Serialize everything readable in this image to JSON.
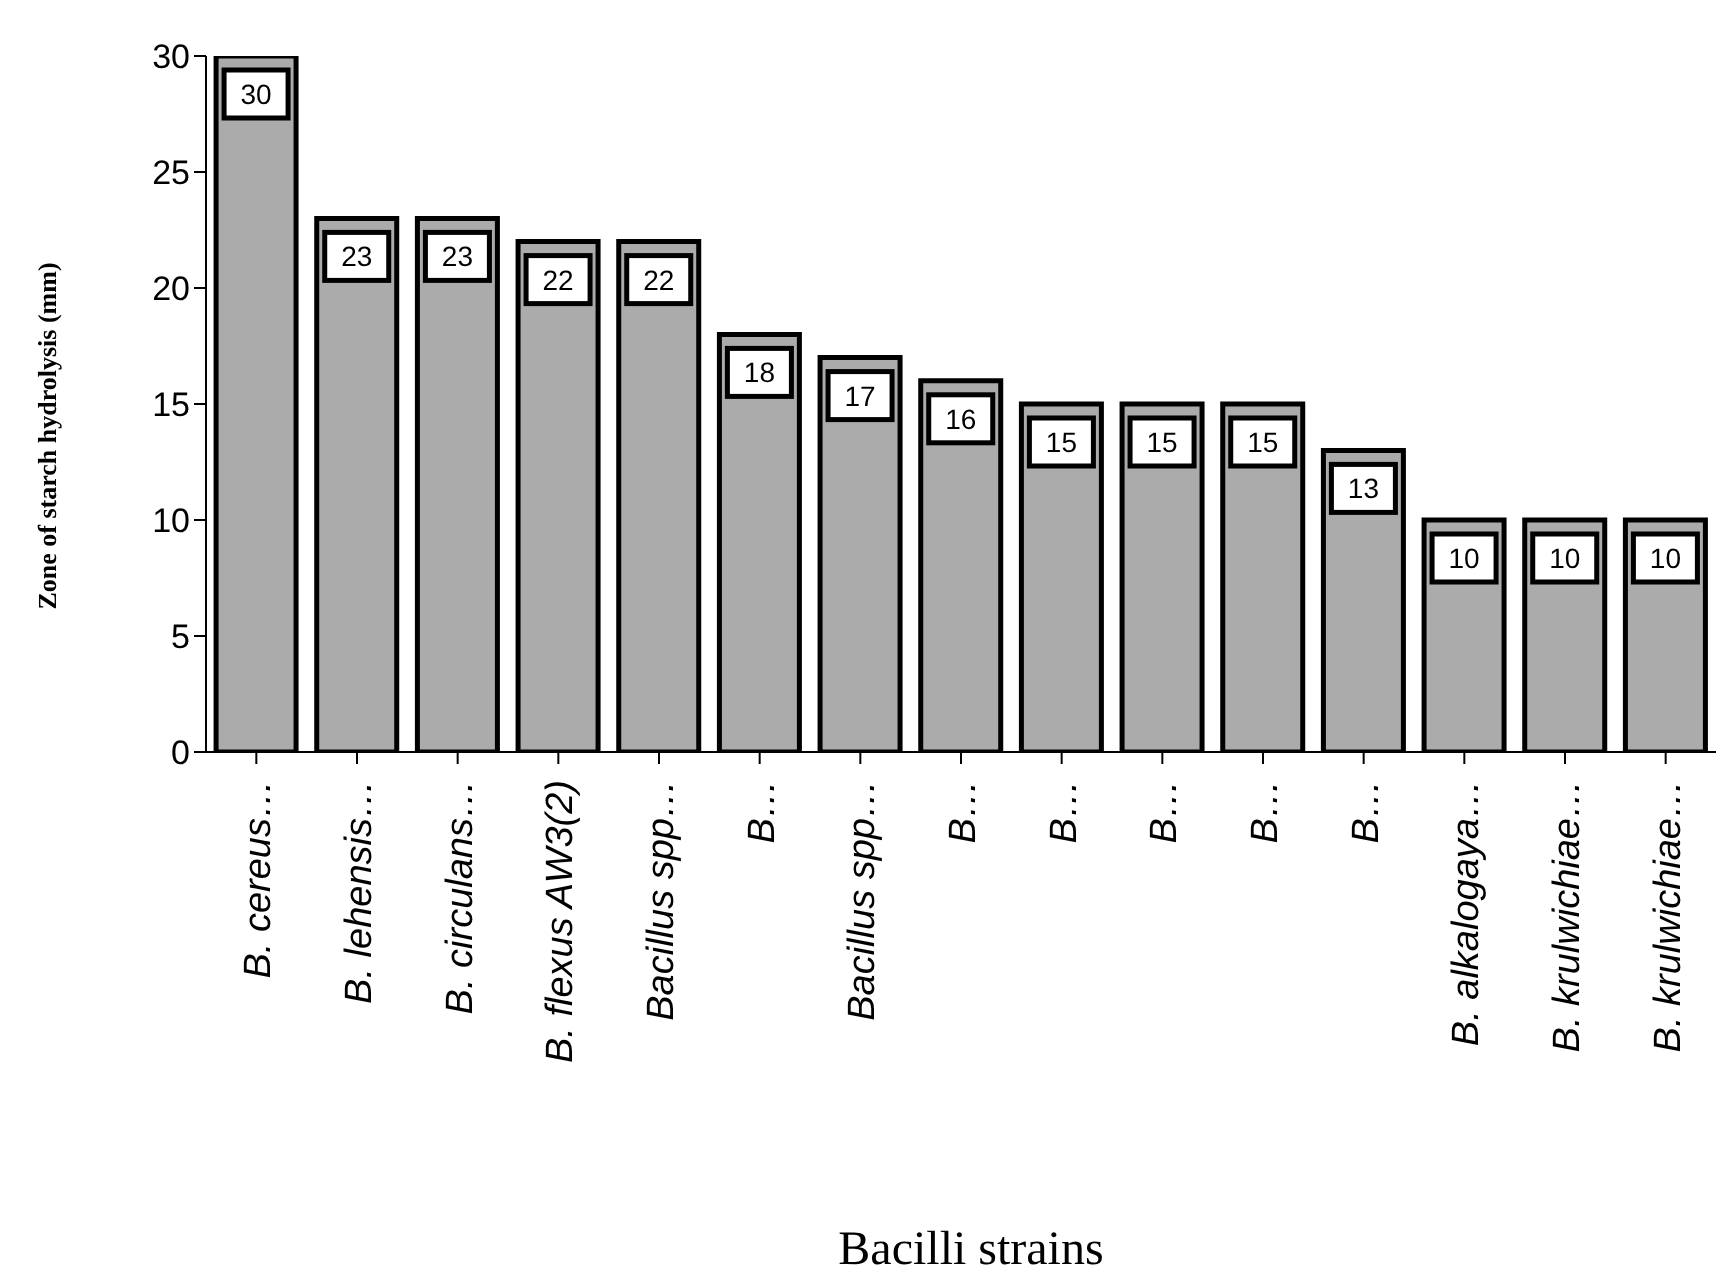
{
  "chart_data": {
    "type": "bar",
    "xlabel": "Bacilli strains",
    "ylabel": "Zone of starch hydrolysis (mm)",
    "categories": [
      "B. cereus…",
      "B. lehensis…",
      "B. circulans…",
      "B. flexus AW3(2)",
      "Bacillus spp…",
      "B…",
      "Bacillus spp…",
      "B…",
      "B…",
      "B…",
      "B…",
      "B…",
      "B. alkalogaya…",
      "B. krulwichiae…",
      "B. krulwichiae…"
    ],
    "values": [
      30,
      23,
      23,
      22,
      22,
      18,
      17,
      16,
      15,
      15,
      15,
      13,
      10,
      10,
      10
    ],
    "color": "#ababab",
    "ylim": [
      0,
      30
    ],
    "yticks": [
      0,
      5,
      10,
      15,
      20,
      25,
      30
    ],
    "grid": false,
    "legend": false,
    "data_labels": true
  }
}
